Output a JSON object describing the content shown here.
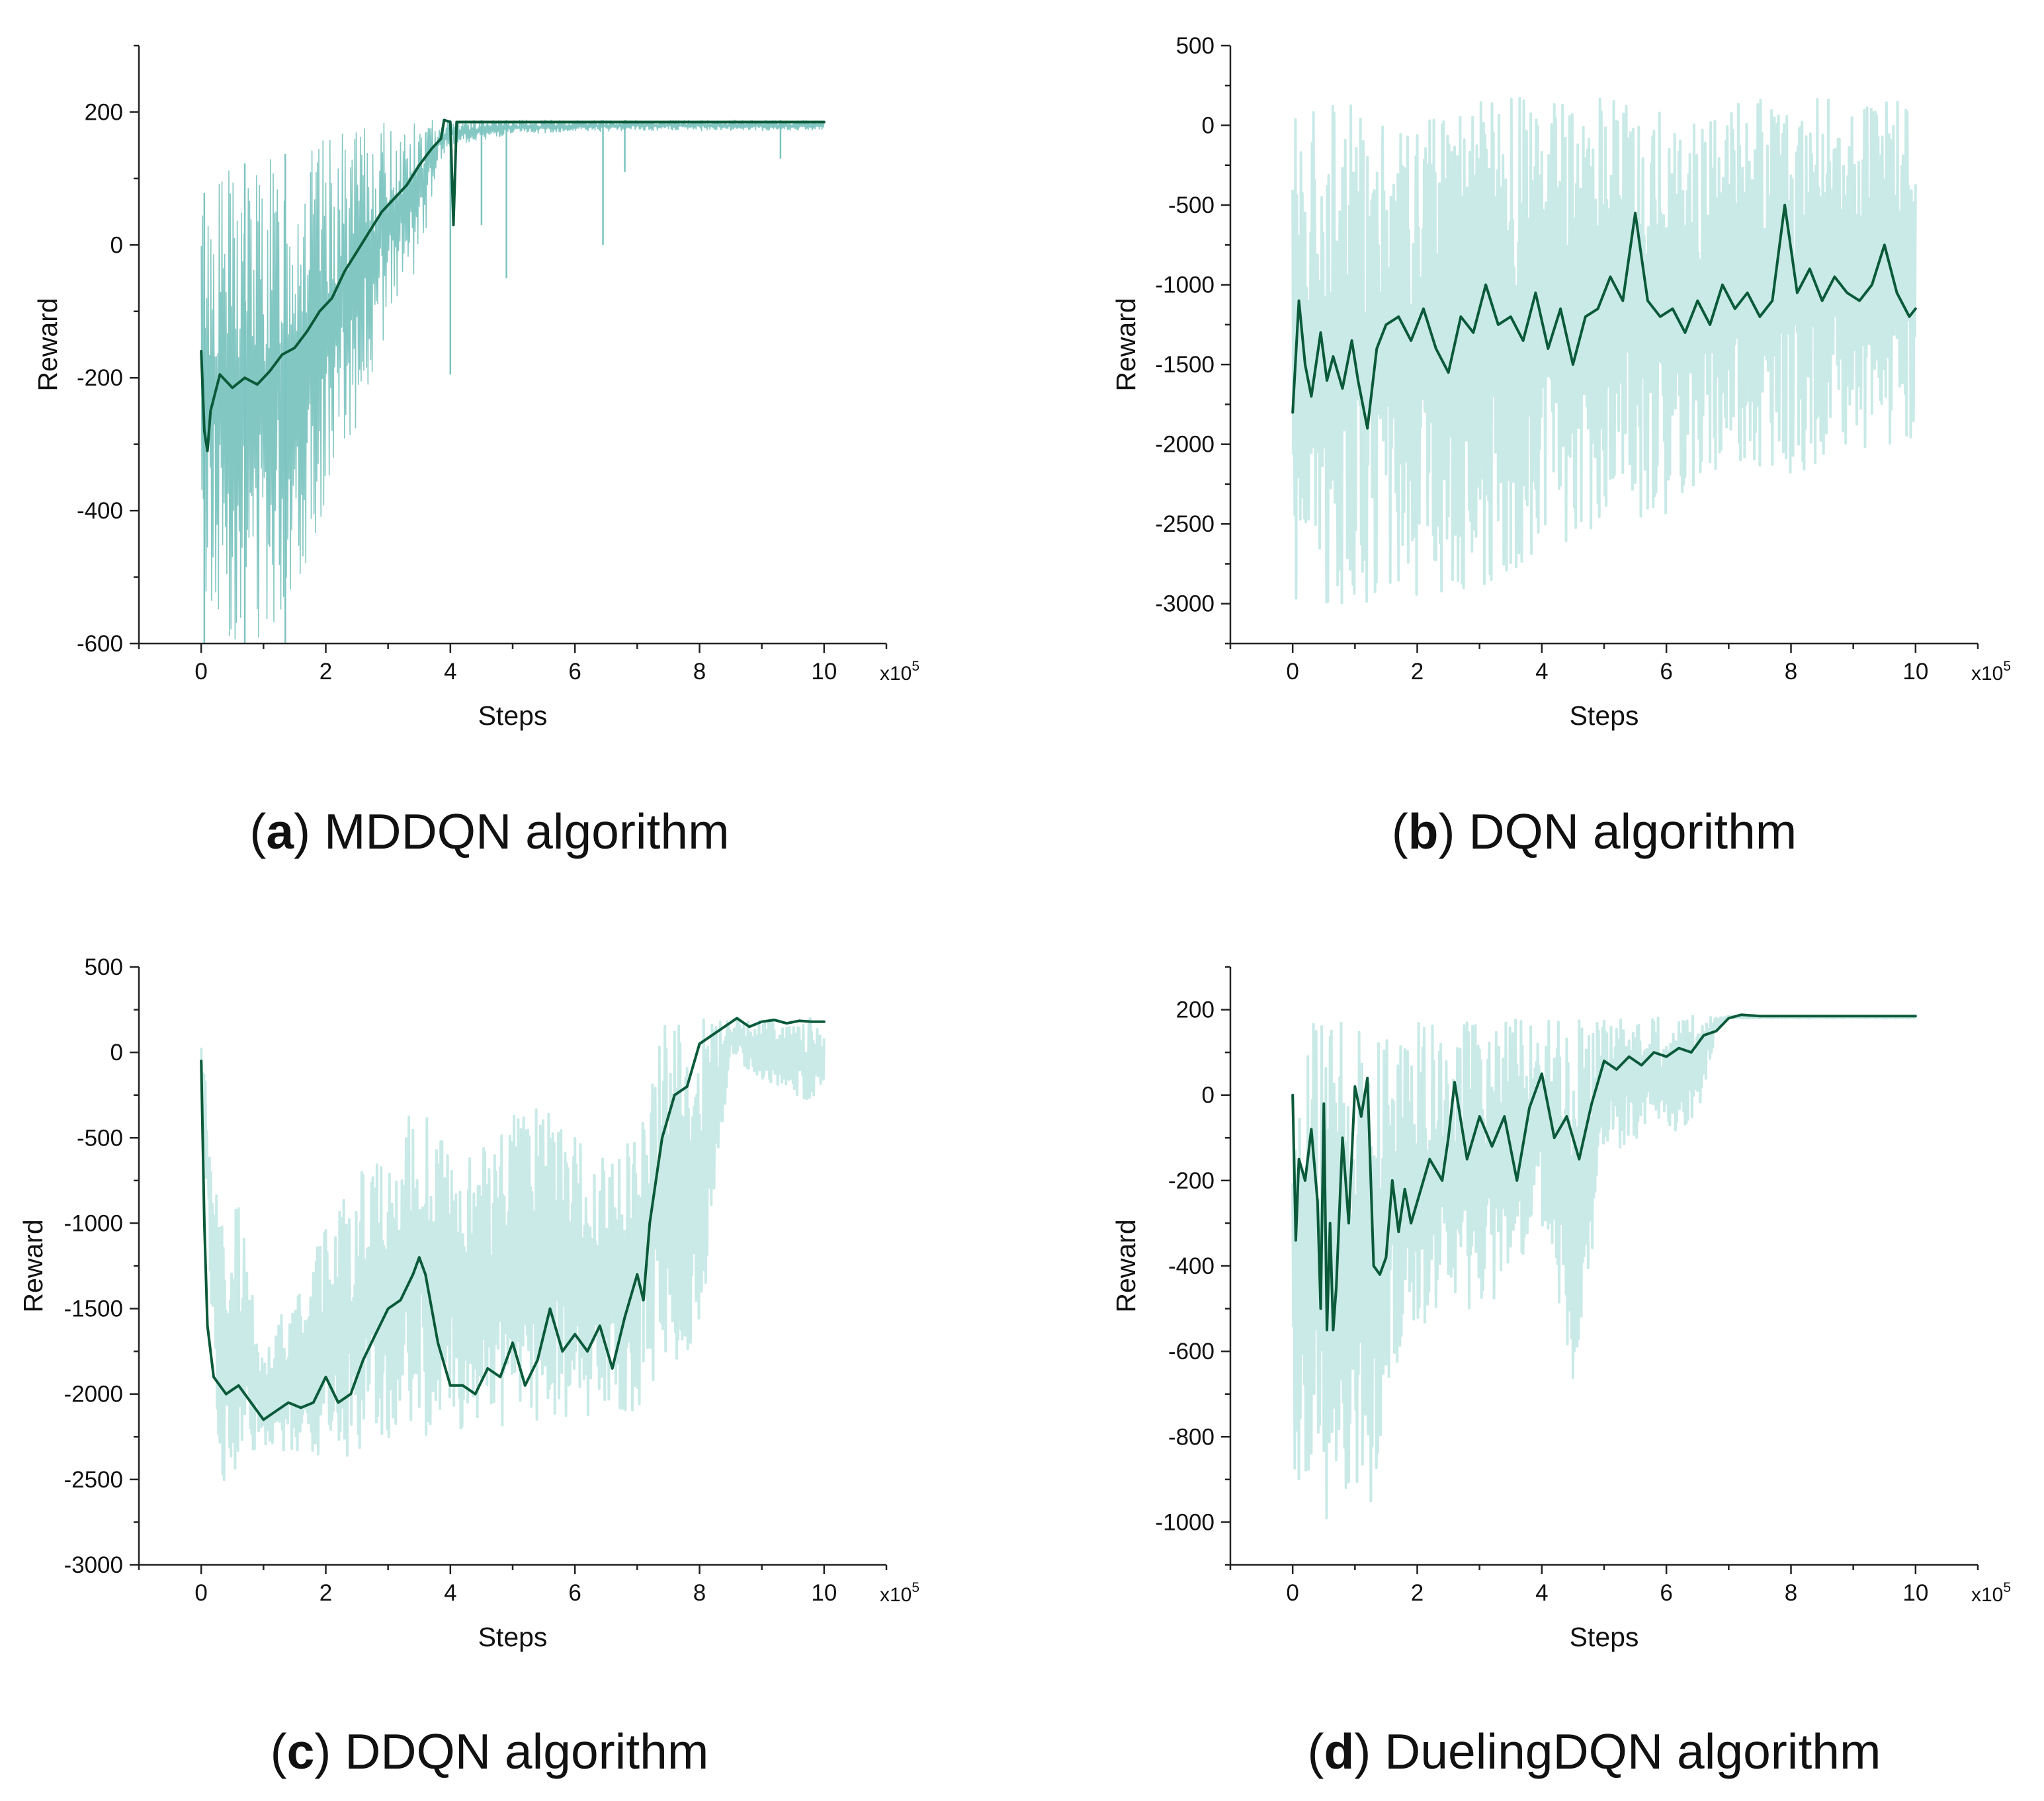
{
  "colors": {
    "raw_dense": "#7cc4c0",
    "raw_light": "#bfe6e3",
    "smoothed": "#0b5a3a",
    "axis": "#222222"
  },
  "chart_data": [
    {
      "id": "a",
      "type": "line",
      "caption_letter": "a",
      "caption_text": "MDDQN algorithm",
      "xlabel": "Steps",
      "ylabel": "Reward",
      "x_multiplier_base": "x10",
      "x_multiplier_exp": "5",
      "xlim": [
        -1,
        11
      ],
      "ylim": [
        -600,
        300
      ],
      "xticks": [
        0,
        2,
        4,
        6,
        8,
        10
      ],
      "yticks": [
        -600,
        -400,
        -200,
        0,
        200
      ],
      "raw_style": "dense",
      "raw_envelope": {
        "x": [
          0,
          0.3,
          0.6,
          1.0,
          1.5,
          2.0,
          2.5,
          3.0,
          3.5,
          3.8,
          4.0,
          5.0,
          6.0,
          7.0,
          8.0,
          9.0,
          10.0
        ],
        "upper": [
          70,
          120,
          120,
          130,
          140,
          160,
          175,
          185,
          188,
          190,
          188,
          188,
          188,
          188,
          188,
          188,
          188
        ],
        "lower": [
          -520,
          -580,
          -600,
          -590,
          -530,
          -400,
          -270,
          -120,
          -30,
          120,
          150,
          165,
          170,
          172,
          172,
          172,
          172
        ]
      },
      "raw_spikes": [
        {
          "x": 0.05,
          "y": -600
        },
        {
          "x": 0.7,
          "y": -600
        },
        {
          "x": 1.35,
          "y": -600
        },
        {
          "x": 4.0,
          "y": -195
        },
        {
          "x": 4.5,
          "y": 30
        },
        {
          "x": 4.9,
          "y": -50
        },
        {
          "x": 6.45,
          "y": 0
        },
        {
          "x": 6.8,
          "y": 110
        },
        {
          "x": 9.3,
          "y": 130
        }
      ],
      "smoothed": {
        "x": [
          0,
          0.05,
          0.1,
          0.15,
          0.3,
          0.5,
          0.7,
          0.9,
          1.1,
          1.3,
          1.5,
          1.7,
          1.9,
          2.1,
          2.3,
          2.5,
          2.7,
          2.9,
          3.1,
          3.3,
          3.5,
          3.7,
          3.85,
          3.9,
          4.0,
          4.05,
          4.1,
          5,
          6,
          7,
          8,
          9,
          10
        ],
        "y": [
          -160,
          -280,
          -310,
          -250,
          -195,
          -215,
          -200,
          -210,
          -190,
          -165,
          -155,
          -130,
          -100,
          -80,
          -40,
          -10,
          20,
          50,
          70,
          90,
          120,
          145,
          160,
          188,
          185,
          30,
          185,
          185,
          185,
          185,
          185,
          185,
          185
        ]
      }
    },
    {
      "id": "b",
      "type": "line",
      "caption_letter": "b",
      "caption_text": "DQN algorithm",
      "xlabel": "Steps",
      "ylabel": "Reward",
      "x_multiplier_base": "x10",
      "x_multiplier_exp": "5",
      "xlim": [
        -1,
        11
      ],
      "ylim": [
        -3250,
        500
      ],
      "xticks": [
        0,
        2,
        4,
        6,
        8,
        10
      ],
      "yticks": [
        -3000,
        -2500,
        -2000,
        -1500,
        -1000,
        -500,
        0,
        500
      ],
      "raw_style": "light",
      "raw_envelope": {
        "x": [
          0,
          1,
          2,
          3,
          4,
          5,
          6,
          7,
          8,
          9,
          10
        ],
        "upper": [
          170,
          170,
          170,
          170,
          170,
          170,
          170,
          170,
          170,
          170,
          170
        ],
        "lower": [
          -3000,
          -3000,
          -2950,
          -2900,
          -2700,
          -2500,
          -2450,
          -2100,
          -2200,
          -2050,
          -2000
        ]
      },
      "raw_spikes": [],
      "smoothed": {
        "x": [
          0,
          0.1,
          0.2,
          0.3,
          0.45,
          0.55,
          0.65,
          0.8,
          0.95,
          1.05,
          1.2,
          1.35,
          1.5,
          1.7,
          1.9,
          2.1,
          2.3,
          2.5,
          2.7,
          2.9,
          3.1,
          3.3,
          3.5,
          3.7,
          3.9,
          4.1,
          4.3,
          4.5,
          4.7,
          4.9,
          5.1,
          5.3,
          5.5,
          5.7,
          5.9,
          6.1,
          6.3,
          6.5,
          6.7,
          6.9,
          7.1,
          7.3,
          7.5,
          7.7,
          7.9,
          8.1,
          8.3,
          8.5,
          8.7,
          8.9,
          9.1,
          9.3,
          9.5,
          9.7,
          9.9,
          10
        ],
        "y": [
          -1800,
          -1100,
          -1500,
          -1700,
          -1300,
          -1600,
          -1450,
          -1650,
          -1350,
          -1600,
          -1900,
          -1400,
          -1250,
          -1200,
          -1350,
          -1150,
          -1400,
          -1550,
          -1200,
          -1300,
          -1000,
          -1250,
          -1200,
          -1350,
          -1050,
          -1400,
          -1150,
          -1500,
          -1200,
          -1150,
          -950,
          -1100,
          -550,
          -1100,
          -1200,
          -1150,
          -1300,
          -1100,
          -1250,
          -1000,
          -1150,
          -1050,
          -1200,
          -1100,
          -500,
          -1050,
          -900,
          -1100,
          -950,
          -1050,
          -1100,
          -1000,
          -750,
          -1050,
          -1200,
          -1150
        ]
      }
    },
    {
      "id": "c",
      "type": "line",
      "caption_letter": "c",
      "caption_text": "DDQN algorithm",
      "xlabel": "Steps",
      "ylabel": "Reward",
      "x_multiplier_base": "x10",
      "x_multiplier_exp": "5",
      "xlim": [
        -1,
        11
      ],
      "ylim": [
        -3000,
        500
      ],
      "xticks": [
        0,
        2,
        4,
        6,
        8,
        10
      ],
      "yticks": [
        -3000,
        -2500,
        -2000,
        -1500,
        -1000,
        -500,
        0,
        500
      ],
      "raw_style": "light",
      "raw_envelope": {
        "x": [
          0,
          0.3,
          0.6,
          1.0,
          1.5,
          2.0,
          2.5,
          3.0,
          3.5,
          4.0,
          4.5,
          5.0,
          5.5,
          6.0,
          6.5,
          7.0,
          7.3,
          7.6,
          8.0,
          8.5,
          9.0,
          9.5,
          10.0
        ],
        "upper": [
          100,
          -1000,
          -900,
          -1700,
          -1400,
          -1000,
          -700,
          -600,
          -200,
          -600,
          -500,
          -200,
          -300,
          -400,
          -600,
          -500,
          200,
          200,
          200,
          200,
          200,
          200,
          200
        ],
        "lower": [
          -200,
          -2600,
          -2400,
          -2300,
          -2350,
          -2400,
          -2350,
          -2250,
          -2250,
          -2200,
          -2250,
          -2200,
          -2150,
          -2150,
          -2100,
          -2100,
          -1900,
          -1800,
          -1700,
          0,
          -200,
          -250,
          -300
        ]
      },
      "raw_spikes": [],
      "smoothed": {
        "x": [
          0,
          0.05,
          0.1,
          0.2,
          0.4,
          0.6,
          0.8,
          1.0,
          1.2,
          1.4,
          1.6,
          1.8,
          2.0,
          2.2,
          2.4,
          2.6,
          2.8,
          3.0,
          3.2,
          3.4,
          3.5,
          3.6,
          3.8,
          4.0,
          4.2,
          4.4,
          4.6,
          4.8,
          5.0,
          5.2,
          5.4,
          5.6,
          5.8,
          6.0,
          6.2,
          6.4,
          6.6,
          6.8,
          7.0,
          7.1,
          7.2,
          7.4,
          7.6,
          7.8,
          8.0,
          8.2,
          8.4,
          8.6,
          8.8,
          9.0,
          9.2,
          9.4,
          9.6,
          9.8,
          10.0
        ],
        "y": [
          -50,
          -1000,
          -1600,
          -1900,
          -2000,
          -1950,
          -2050,
          -2150,
          -2100,
          -2050,
          -2080,
          -2050,
          -1900,
          -2050,
          -2000,
          -1800,
          -1650,
          -1500,
          -1450,
          -1300,
          -1200,
          -1300,
          -1700,
          -1950,
          -1950,
          -2000,
          -1850,
          -1900,
          -1700,
          -1950,
          -1800,
          -1500,
          -1750,
          -1650,
          -1750,
          -1600,
          -1850,
          -1550,
          -1300,
          -1450,
          -1000,
          -500,
          -250,
          -200,
          50,
          100,
          150,
          200,
          150,
          180,
          190,
          170,
          185,
          180,
          180
        ]
      }
    },
    {
      "id": "d",
      "type": "line",
      "caption_letter": "d",
      "caption_text": "DuelingDQN algorithm",
      "xlabel": "Steps",
      "ylabel": "Reward",
      "x_multiplier_base": "x10",
      "x_multiplier_exp": "5",
      "xlim": [
        -1,
        11
      ],
      "ylim": [
        -1100,
        300
      ],
      "xticks": [
        0,
        2,
        4,
        6,
        8,
        10
      ],
      "yticks": [
        -1000,
        -800,
        -600,
        -400,
        -200,
        0,
        200
      ],
      "raw_style": "light",
      "raw_envelope": {
        "x": [
          0,
          0.3,
          0.6,
          1.0,
          1.3,
          1.6,
          2.0,
          2.5,
          3.0,
          3.5,
          4.0,
          4.5,
          5.0,
          5.5,
          6.0,
          6.5,
          6.8,
          7.0,
          8.0,
          9.0,
          10.0
        ],
        "upper": [
          100,
          180,
          180,
          170,
          150,
          160,
          170,
          170,
          180,
          180,
          180,
          180,
          180,
          180,
          185,
          185,
          185,
          185,
          185,
          185,
          185
        ],
        "lower": [
          -920,
          -950,
          -1000,
          -1000,
          -990,
          -700,
          -550,
          -550,
          -500,
          -450,
          -300,
          -740,
          -150,
          -100,
          -100,
          -60,
          150,
          180,
          180,
          180,
          180
        ]
      },
      "raw_spikes": [],
      "smoothed": {
        "x": [
          0,
          0.05,
          0.1,
          0.2,
          0.3,
          0.4,
          0.45,
          0.5,
          0.55,
          0.6,
          0.65,
          0.7,
          0.8,
          0.9,
          1.0,
          1.1,
          1.2,
          1.3,
          1.4,
          1.5,
          1.6,
          1.7,
          1.8,
          1.9,
          2.0,
          2.2,
          2.4,
          2.5,
          2.6,
          2.8,
          3.0,
          3.2,
          3.4,
          3.6,
          3.8,
          4.0,
          4.2,
          4.4,
          4.6,
          4.8,
          5.0,
          5.2,
          5.4,
          5.6,
          5.8,
          6.0,
          6.2,
          6.4,
          6.6,
          6.8,
          7.0,
          7.2,
          7.5,
          8.0,
          8.5,
          9.0,
          9.5,
          10.0
        ],
        "y": [
          0,
          -340,
          -150,
          -200,
          -80,
          -250,
          -500,
          -20,
          -550,
          -300,
          -550,
          -450,
          -100,
          -300,
          20,
          -50,
          40,
          -400,
          -420,
          -380,
          -200,
          -320,
          -220,
          -300,
          -250,
          -150,
          -200,
          -100,
          30,
          -150,
          -50,
          -120,
          -50,
          -200,
          -30,
          50,
          -100,
          -50,
          -150,
          -20,
          80,
          60,
          90,
          70,
          100,
          90,
          110,
          100,
          140,
          150,
          180,
          188,
          185,
          185,
          185,
          185,
          185,
          185
        ]
      }
    }
  ]
}
